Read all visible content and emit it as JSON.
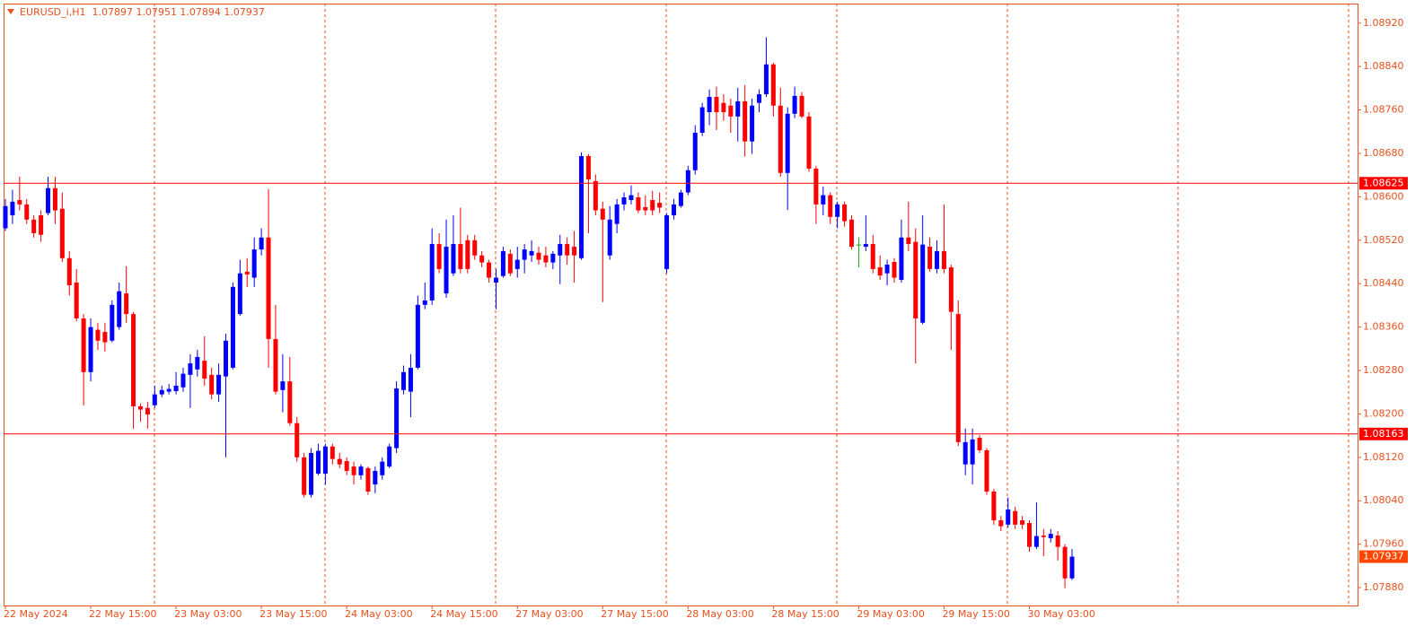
{
  "chart_data": {
    "type": "candlestick",
    "title": "EURUSD_i,H1  1.07897 1.07951 1.07894 1.07937",
    "categories": [
      "22 May 2024",
      null,
      null,
      null,
      null,
      null,
      null,
      null,
      null,
      null,
      null,
      null,
      "22 May 15:00",
      null,
      null,
      null,
      null,
      null,
      null,
      null,
      null,
      null,
      null,
      null,
      "23 May 03:00",
      null,
      null,
      null,
      null,
      null,
      null,
      null,
      null,
      null,
      null,
      null,
      "23 May 15:00",
      null,
      null,
      null,
      null,
      null,
      null,
      null,
      null,
      null,
      null,
      null,
      "24 May 03:00",
      null,
      null,
      null,
      null,
      null,
      null,
      null,
      null,
      null,
      null,
      null,
      "24 May 15:00",
      null,
      null,
      null,
      null,
      null,
      null,
      null,
      null,
      null,
      null,
      null,
      "27 May 03:00",
      null,
      null,
      null,
      null,
      null,
      null,
      null,
      null,
      null,
      null,
      null,
      "27 May 15:00",
      null,
      null,
      null,
      null,
      null,
      null,
      null,
      null,
      null,
      null,
      null,
      "28 May 03:00",
      null,
      null,
      null,
      null,
      null,
      null,
      null,
      null,
      null,
      null,
      null,
      "28 May 15:00",
      null,
      null,
      null,
      null,
      null,
      null,
      null,
      null,
      null,
      null,
      null,
      "29 May 03:00",
      null,
      null,
      null,
      null,
      null,
      null,
      null,
      null,
      null,
      null,
      null,
      "29 May 15:00",
      null,
      null,
      null,
      null,
      null,
      null,
      null,
      null,
      null,
      null,
      null,
      "30 May 03:00",
      null,
      null,
      null,
      null,
      null,
      null
    ],
    "open": [
      1.08542,
      1.08566,
      1.08594,
      1.08586,
      1.08558,
      1.08566,
      1.0857,
      1.08616,
      1.08578,
      1.08487,
      1.08442,
      1.08376,
      1.08277,
      1.08355,
      1.08351,
      1.08335,
      1.0836,
      1.08422,
      1.08384,
      1.08214,
      1.08211,
      1.08216,
      1.08236,
      1.08241,
      1.08242,
      1.08249,
      1.08272,
      1.08282,
      1.08298,
      1.08272,
      1.08236,
      1.08269,
      1.08285,
      1.08384,
      1.08462,
      1.08451,
      1.08503,
      1.08525,
      1.08338,
      1.08244,
      1.0826,
      1.08183,
      1.0812,
      1.08051,
      1.0809,
      1.0809,
      1.0814,
      1.08117,
      1.08113,
      1.08103,
      1.08087,
      1.081,
      1.0807,
      1.08087,
      1.08103,
      1.08137,
      1.08244,
      1.08241,
      1.08285,
      1.08401,
      1.08409,
      1.08513,
      1.08422,
      1.08459,
      1.08513,
      1.0852,
      1.0852,
      1.08492,
      1.08479,
      1.08442,
      1.08454,
      1.08495,
      1.08467,
      1.08484,
      1.08492,
      1.08497,
      1.08492,
      1.08479,
      1.08492,
      1.08513,
      1.08508,
      1.08487,
      1.08675,
      1.08629,
      1.08578,
      1.08492,
      1.0855,
      1.08586,
      1.08594,
      1.08599,
      1.08581,
      1.08594,
      1.08589,
      1.08467,
      1.08566,
      1.08583,
      1.08608,
      1.08649,
      1.08718,
      1.08756,
      1.08784,
      1.08773,
      1.08768,
      1.08748,
      1.08776,
      1.08702,
      1.08773,
      1.08789,
      1.08844,
      1.08768,
      1.08644,
      1.08753,
      1.08786,
      1.08748,
      1.08652,
      1.08586,
      1.08603,
      1.08563,
      1.08586,
      1.08558,
      1.08512,
      1.08508,
      1.08513,
      1.0847,
      1.08459,
      1.0848,
      1.08447,
      1.08525,
      1.08517,
      1.08368,
      1.08508,
      1.08467,
      1.085,
      1.0847,
      1.08384,
      1.08107,
      1.08107,
      1.08156,
      1.08133,
      1.08057,
      1.08004,
      1.07996,
      1.08021,
      1.08004,
      1.07999,
      1.07955,
      1.07976,
      1.07971,
      1.07976,
      1.07955,
      1.07897
    ],
    "high": [
      1.08596,
      1.08613,
      1.08637,
      1.08596,
      1.08566,
      1.08575,
      1.08637,
      1.08637,
      1.08608,
      1.085,
      1.08467,
      1.08384,
      1.08376,
      1.08368,
      1.08368,
      1.08409,
      1.08442,
      1.08472,
      1.08388,
      1.08219,
      1.08222,
      1.08252,
      1.08252,
      1.08255,
      1.08277,
      1.08285,
      1.0831,
      1.08318,
      1.08343,
      1.08285,
      1.08293,
      1.08348,
      1.08442,
      1.08484,
      1.08487,
      1.08525,
      1.08542,
      1.08614,
      1.08401,
      1.0831,
      1.08305,
      1.08194,
      1.08128,
      1.08137,
      1.08145,
      1.08145,
      1.08145,
      1.08128,
      1.0812,
      1.08112,
      1.08107,
      1.08103,
      1.08103,
      1.0812,
      1.08145,
      1.0826,
      1.08289,
      1.0831,
      1.08418,
      1.08442,
      1.08542,
      1.08533,
      1.08558,
      1.08566,
      1.0858,
      1.0853,
      1.0853,
      1.085,
      1.08484,
      1.08467,
      1.08508,
      1.08503,
      1.08508,
      1.08513,
      1.0852,
      1.08508,
      1.08508,
      1.085,
      1.0853,
      1.08525,
      1.08537,
      1.08682,
      1.08679,
      1.08641,
      1.08591,
      1.08583,
      1.08596,
      1.08608,
      1.08621,
      1.08608,
      1.08603,
      1.08611,
      1.08608,
      1.0857,
      1.08596,
      1.08613,
      1.08657,
      1.08732,
      1.08773,
      1.08798,
      1.08803,
      1.08789,
      1.08781,
      1.08801,
      1.08806,
      1.08781,
      1.08798,
      1.08894,
      1.08847,
      1.08801,
      1.08765,
      1.08803,
      1.08793,
      1.08756,
      1.08657,
      1.08619,
      1.08608,
      1.08591,
      1.08591,
      1.08566,
      1.08525,
      1.08566,
      1.0853,
      1.08492,
      1.08484,
      1.08487,
      1.08558,
      1.08591,
      1.08542,
      1.08566,
      1.08525,
      1.0852,
      1.08586,
      1.08475,
      1.08409,
      1.08173,
      1.08173,
      1.08161,
      1.08137,
      1.08062,
      1.08012,
      1.08046,
      1.08029,
      1.08012,
      1.08004,
      1.08037,
      1.07988,
      1.07988,
      1.07984,
      1.0796,
      1.07951
    ],
    "low": [
      1.08537,
      1.0855,
      1.08575,
      1.0855,
      1.08525,
      1.08517,
      1.08566,
      1.0855,
      1.0848,
      1.08418,
      1.08371,
      1.08216,
      1.0826,
      1.08318,
      1.08315,
      1.08332,
      1.08355,
      1.08368,
      1.08173,
      1.08186,
      1.08173,
      1.08211,
      1.08231,
      1.08236,
      1.08236,
      1.08241,
      1.08211,
      1.08269,
      1.08252,
      1.08227,
      1.08222,
      1.0812,
      1.08282,
      1.08381,
      1.08434,
      1.08434,
      1.08492,
      1.08285,
      1.08236,
      1.08203,
      1.08178,
      1.08112,
      1.08046,
      1.08046,
      1.08087,
      1.0807,
      1.08107,
      1.081,
      1.08087,
      1.0807,
      1.08079,
      1.08051,
      1.08054,
      1.08079,
      1.081,
      1.08128,
      1.08236,
      1.08194,
      1.08282,
      1.08393,
      1.08401,
      1.08459,
      1.08414,
      1.08454,
      1.08459,
      1.08459,
      1.08484,
      1.0847,
      1.08442,
      1.08393,
      1.08451,
      1.08454,
      1.08451,
      1.08459,
      1.0848,
      1.08475,
      1.0847,
      1.08467,
      1.08439,
      1.08475,
      1.08442,
      1.08484,
      1.08533,
      1.08566,
      1.08406,
      1.08484,
      1.08533,
      1.08575,
      1.08586,
      1.0857,
      1.08566,
      1.08566,
      1.0857,
      1.08459,
      1.08558,
      1.0858,
      1.08603,
      1.08641,
      1.08712,
      1.08732,
      1.08723,
      1.0874,
      1.08718,
      1.08702,
      1.08674,
      1.08679,
      1.08756,
      1.08784,
      1.08748,
      1.08637,
      1.08576,
      1.08745,
      1.08745,
      1.08646,
      1.0855,
      1.08566,
      1.0855,
      1.08542,
      1.08545,
      1.08503,
      1.0847,
      1.085,
      1.08459,
      1.08447,
      1.08437,
      1.08442,
      1.08442,
      1.085,
      1.08293,
      1.08365,
      1.08462,
      1.08459,
      1.08459,
      1.08318,
      1.08141,
      1.08087,
      1.0807,
      1.08128,
      1.08051,
      1.07996,
      1.07984,
      1.07991,
      1.07988,
      1.07988,
      1.07946,
      1.07951,
      1.07938,
      1.07963,
      1.0793,
      1.07879,
      1.07894
    ],
    "close": [
      1.08583,
      1.08591,
      1.08586,
      1.08558,
      1.08533,
      1.0853,
      1.08616,
      1.08575,
      1.08487,
      1.08437,
      1.08376,
      1.08277,
      1.0836,
      1.08335,
      1.08332,
      1.08401,
      1.08426,
      1.08384,
      1.08214,
      1.08208,
      1.08199,
      1.08236,
      1.08244,
      1.08246,
      1.08252,
      1.08274,
      1.08293,
      1.08305,
      1.08265,
      1.08236,
      1.08272,
      1.08335,
      1.08434,
      1.08459,
      1.08457,
      1.08503,
      1.08525,
      1.08338,
      1.08241,
      1.0826,
      1.08183,
      1.0812,
      1.08051,
      1.08128,
      1.08132,
      1.0814,
      1.08117,
      1.08107,
      1.08095,
      1.08087,
      1.08103,
      1.08057,
      1.08095,
      1.08112,
      1.0814,
      1.08247,
      1.08277,
      1.08285,
      1.08401,
      1.08409,
      1.08513,
      1.08467,
      1.08508,
      1.08513,
      1.08467,
      1.08467,
      1.08492,
      1.08479,
      1.08451,
      1.08451,
      1.085,
      1.08459,
      1.08484,
      1.08503,
      1.085,
      1.08484,
      1.08479,
      1.08495,
      1.08513,
      1.08492,
      1.08492,
      1.08675,
      1.08632,
      1.08575,
      1.08558,
      1.08558,
      1.08586,
      1.08599,
      1.08603,
      1.08575,
      1.08575,
      1.08575,
      1.0858,
      1.08566,
      1.08586,
      1.08608,
      1.08649,
      1.08718,
      1.08765,
      1.08784,
      1.08756,
      1.08756,
      1.08748,
      1.08776,
      1.08702,
      1.08768,
      1.08789,
      1.08844,
      1.08768,
      1.08644,
      1.08753,
      1.08786,
      1.08748,
      1.08652,
      1.08586,
      1.08603,
      1.08563,
      1.08586,
      1.08555,
      1.08508,
      1.08512,
      1.08513,
      1.08467,
      1.08455,
      1.08475,
      1.08451,
      1.08525,
      1.08513,
      1.08376,
      1.08512,
      1.08467,
      1.085,
      1.08467,
      1.08388,
      1.08148,
      1.08148,
      1.08153,
      1.08133,
      1.08057,
      1.08004,
      1.07993,
      1.08024,
      1.07996,
      1.07996,
      1.07955,
      1.07975,
      1.07973,
      1.07979,
      1.07955,
      1.07897,
      1.07937
    ],
    "up_color": "#0000ff",
    "down_color": "#ff0000",
    "doji_color": "#00b000",
    "ylim": [
      1.07847,
      1.08956
    ],
    "yticks": [
      {
        "value": 1.0892,
        "label": "1.08920"
      },
      {
        "value": 1.0884,
        "label": "1.08840"
      },
      {
        "value": 1.0876,
        "label": "1.08760"
      },
      {
        "value": 1.0868,
        "label": "1.08680"
      },
      {
        "value": 1.086,
        "label": "1.08600"
      },
      {
        "value": 1.0852,
        "label": "1.08520"
      },
      {
        "value": 1.0844,
        "label": "1.08440"
      },
      {
        "value": 1.0836,
        "label": "1.08360"
      },
      {
        "value": 1.0828,
        "label": "1.08280"
      },
      {
        "value": 1.082,
        "label": "1.08200"
      },
      {
        "value": 1.0812,
        "label": "1.08120"
      },
      {
        "value": 1.0804,
        "label": "1.08040"
      },
      {
        "value": 1.0796,
        "label": "1.07960"
      },
      {
        "value": 1.0788,
        "label": "1.07880"
      }
    ],
    "hlines": [
      1.08625,
      1.08163
    ],
    "hline_color": "#ff0000",
    "current_price": 1.07937,
    "current_price_color": "#ff4500",
    "grid": true
  }
}
